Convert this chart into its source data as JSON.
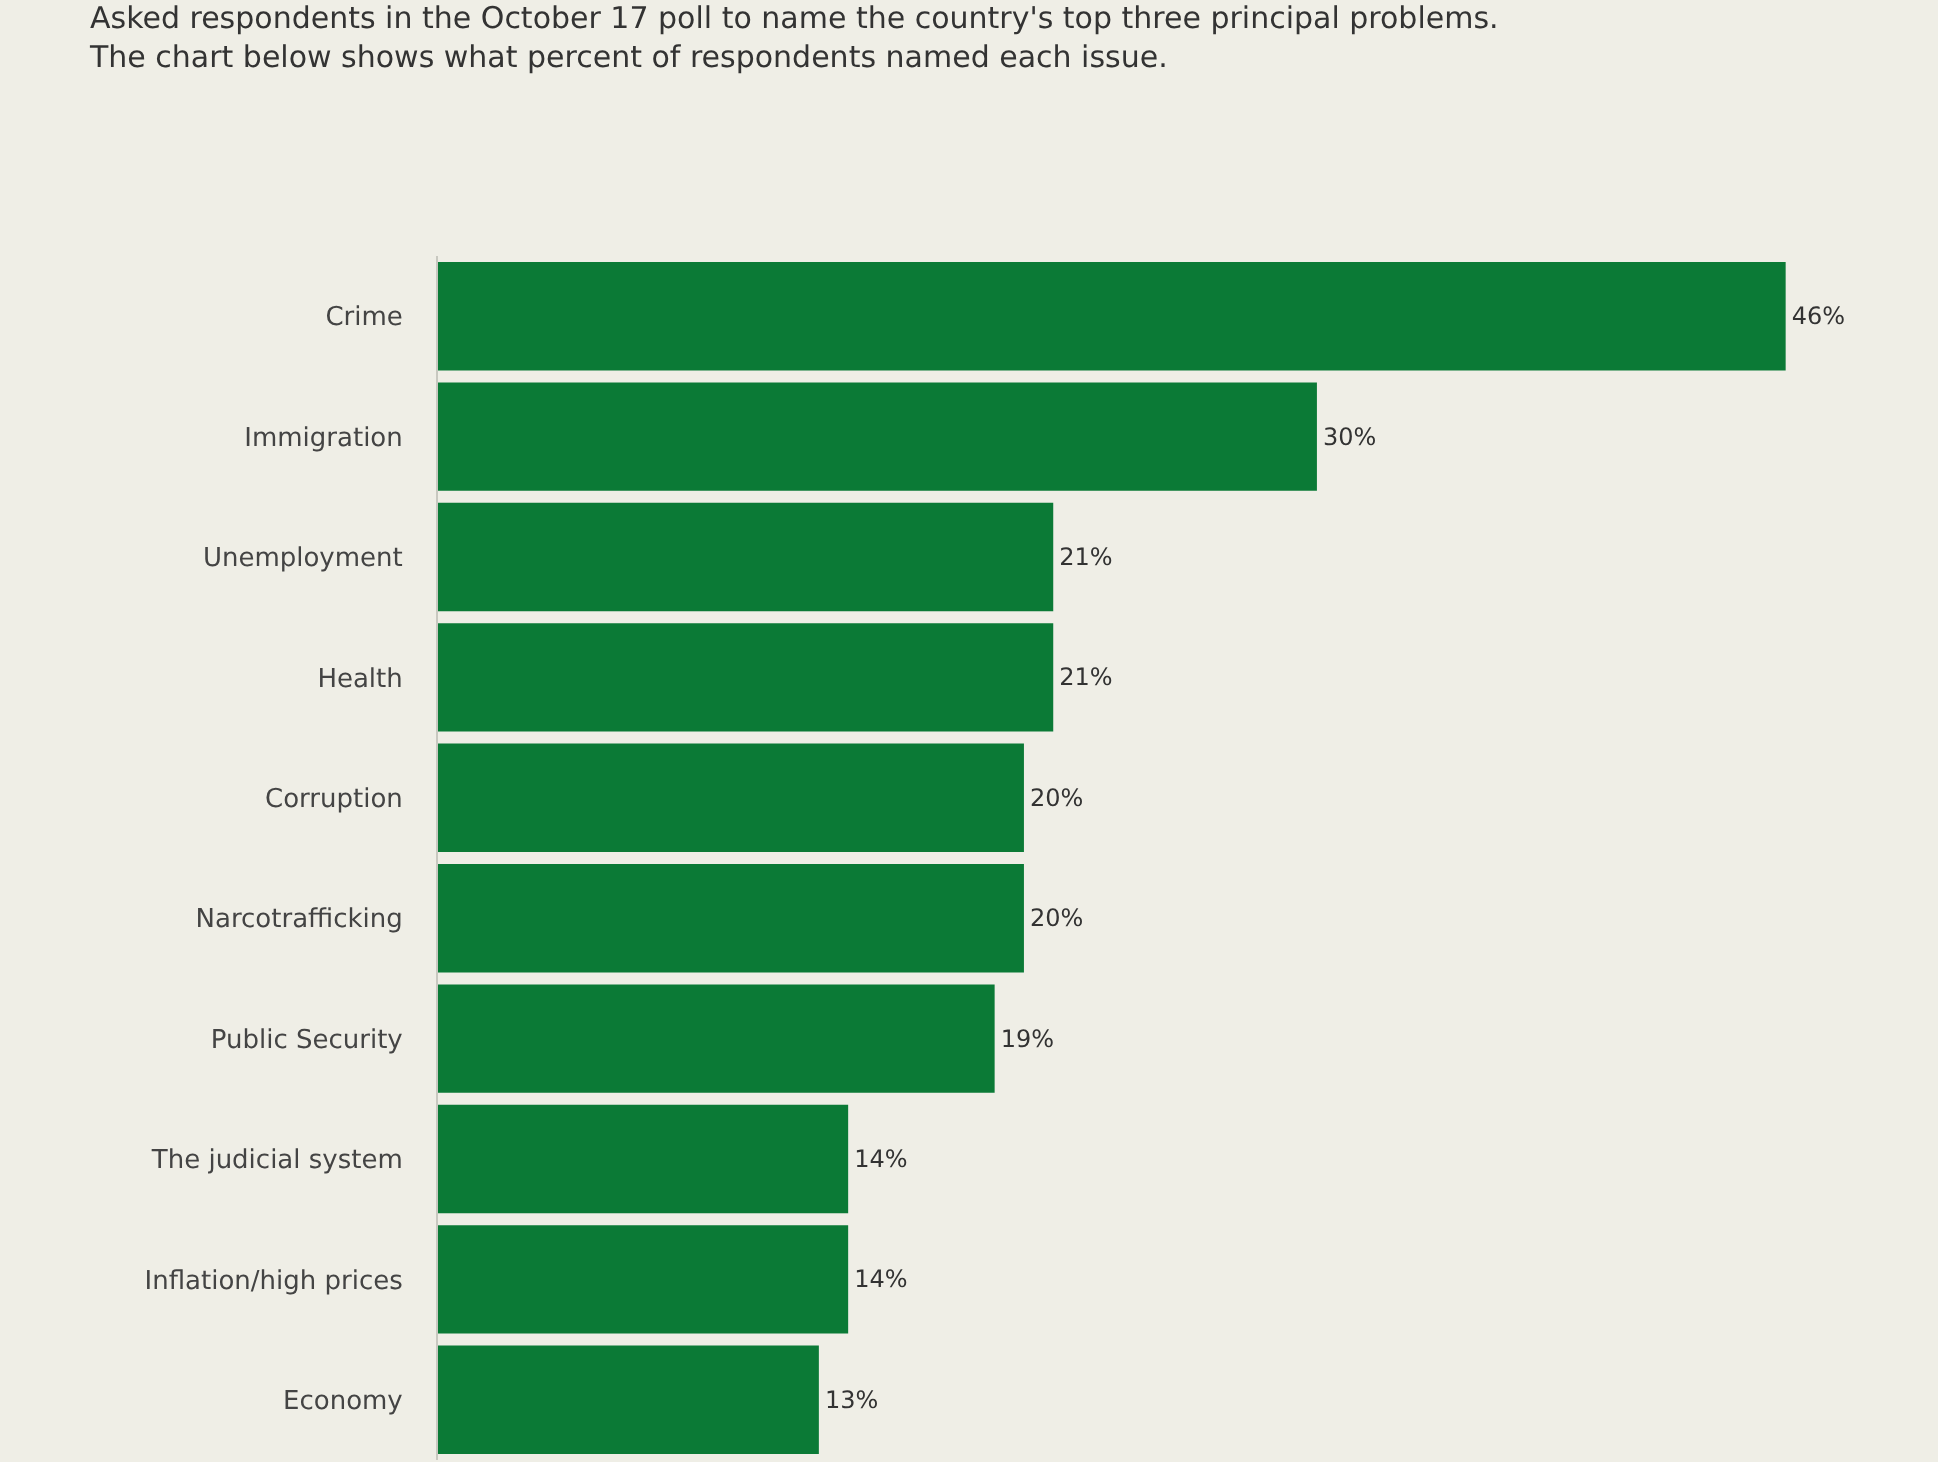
{
  "chart_data": {
    "type": "bar",
    "orientation": "horizontal",
    "title": "Asked respondents in the October 17 poll to name the country's top three principal problems.",
    "subtitle": "The chart below shows what percent of respondents named each issue.",
    "categories": [
      "Crime",
      "Immigration",
      "Unemployment",
      "Health",
      "Corruption",
      "Narcotrafficking",
      "Public Security",
      "The judicial system",
      "Inflation/high prices",
      "Economy"
    ],
    "values": [
      46,
      30,
      21,
      21,
      20,
      20,
      19,
      14,
      14,
      13
    ],
    "value_labels": [
      "46%",
      "30%",
      "21%",
      "21%",
      "20%",
      "20%",
      "19%",
      "14%",
      "14%",
      "13%"
    ],
    "color": "#0b7a36"
  }
}
